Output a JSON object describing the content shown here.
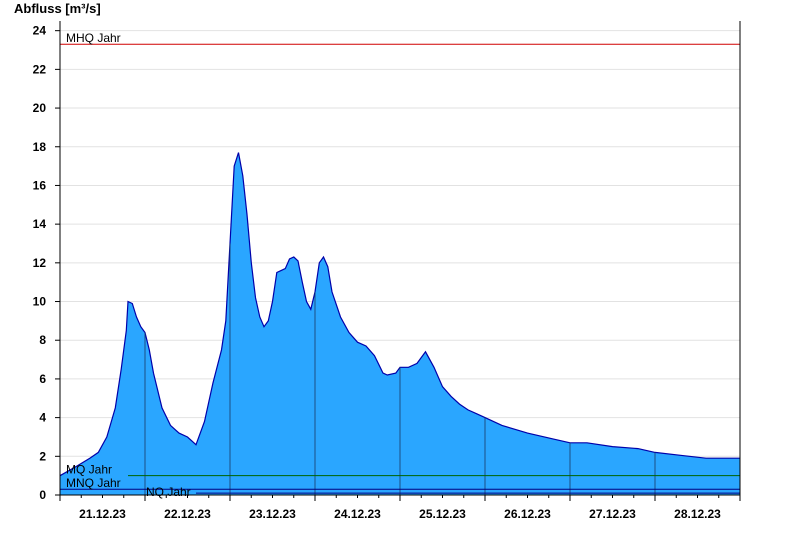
{
  "chart_data": {
    "type": "area",
    "title": "",
    "xlabel": "",
    "ylabel": "Abfluss [m³/s]",
    "ylim": [
      0,
      24.5
    ],
    "yticks": [
      0,
      2,
      4,
      6,
      8,
      10,
      12,
      14,
      16,
      18,
      20,
      22,
      24
    ],
    "x_tick_labels": [
      "21.12.23",
      "22.12.23",
      "23.12.23",
      "24.12.23",
      "25.12.23",
      "26.12.23",
      "27.12.23",
      "28.12.23"
    ],
    "x_range_days": [
      0,
      8
    ],
    "grid": "horizontal",
    "fill_color": "#2aa6ff",
    "line_color": "#0000aa",
    "series": [
      {
        "values": [
          [
            0.0,
            1.0
          ],
          [
            0.2,
            1.5
          ],
          [
            0.35,
            1.9
          ],
          [
            0.45,
            2.2
          ],
          [
            0.55,
            3.0
          ],
          [
            0.65,
            4.5
          ],
          [
            0.72,
            6.5
          ],
          [
            0.78,
            8.5
          ],
          [
            0.8,
            10.0
          ],
          [
            0.85,
            9.9
          ],
          [
            0.9,
            9.2
          ],
          [
            0.95,
            8.7
          ],
          [
            1.0,
            8.4
          ],
          [
            1.05,
            7.5
          ],
          [
            1.1,
            6.3
          ],
          [
            1.2,
            4.5
          ],
          [
            1.3,
            3.6
          ],
          [
            1.4,
            3.2
          ],
          [
            1.5,
            3.0
          ],
          [
            1.6,
            2.6
          ],
          [
            1.7,
            3.8
          ],
          [
            1.8,
            5.8
          ],
          [
            1.9,
            7.5
          ],
          [
            1.95,
            9.0
          ],
          [
            2.0,
            13.0
          ],
          [
            2.05,
            17.0
          ],
          [
            2.1,
            17.7
          ],
          [
            2.15,
            16.5
          ],
          [
            2.2,
            14.5
          ],
          [
            2.25,
            12.0
          ],
          [
            2.3,
            10.2
          ],
          [
            2.35,
            9.2
          ],
          [
            2.4,
            8.7
          ],
          [
            2.45,
            9.0
          ],
          [
            2.5,
            10.0
          ],
          [
            2.55,
            11.5
          ],
          [
            2.6,
            11.6
          ],
          [
            2.65,
            11.7
          ],
          [
            2.7,
            12.2
          ],
          [
            2.75,
            12.3
          ],
          [
            2.8,
            12.1
          ],
          [
            2.85,
            11.0
          ],
          [
            2.9,
            10.0
          ],
          [
            2.95,
            9.6
          ],
          [
            3.0,
            10.5
          ],
          [
            3.05,
            12.0
          ],
          [
            3.1,
            12.3
          ],
          [
            3.15,
            11.8
          ],
          [
            3.2,
            10.5
          ],
          [
            3.3,
            9.2
          ],
          [
            3.4,
            8.4
          ],
          [
            3.5,
            7.9
          ],
          [
            3.6,
            7.7
          ],
          [
            3.7,
            7.2
          ],
          [
            3.8,
            6.3
          ],
          [
            3.85,
            6.2
          ],
          [
            3.95,
            6.3
          ],
          [
            4.0,
            6.6
          ],
          [
            4.1,
            6.6
          ],
          [
            4.2,
            6.8
          ],
          [
            4.3,
            7.4
          ],
          [
            4.4,
            6.6
          ],
          [
            4.5,
            5.6
          ],
          [
            4.6,
            5.1
          ],
          [
            4.7,
            4.7
          ],
          [
            4.8,
            4.4
          ],
          [
            4.9,
            4.2
          ],
          [
            5.0,
            4.0
          ],
          [
            5.2,
            3.6
          ],
          [
            5.5,
            3.2
          ],
          [
            5.8,
            2.9
          ],
          [
            6.0,
            2.7
          ],
          [
            6.2,
            2.7
          ],
          [
            6.5,
            2.5
          ],
          [
            6.8,
            2.4
          ],
          [
            7.0,
            2.2
          ],
          [
            7.3,
            2.05
          ],
          [
            7.6,
            1.9
          ],
          [
            8.0,
            1.9
          ]
        ]
      }
    ],
    "reference_lines": [
      {
        "label": "MHQ Jahr",
        "value": 23.3,
        "color": "#d00000"
      },
      {
        "label": "MQ Jahr",
        "value": 1.0,
        "color": "#006400"
      },
      {
        "label": "MNQ Jahr",
        "value": 0.3,
        "color": "#000080"
      },
      {
        "label": "NQ Jahr",
        "value": 0.1,
        "color": "#000080"
      }
    ]
  }
}
